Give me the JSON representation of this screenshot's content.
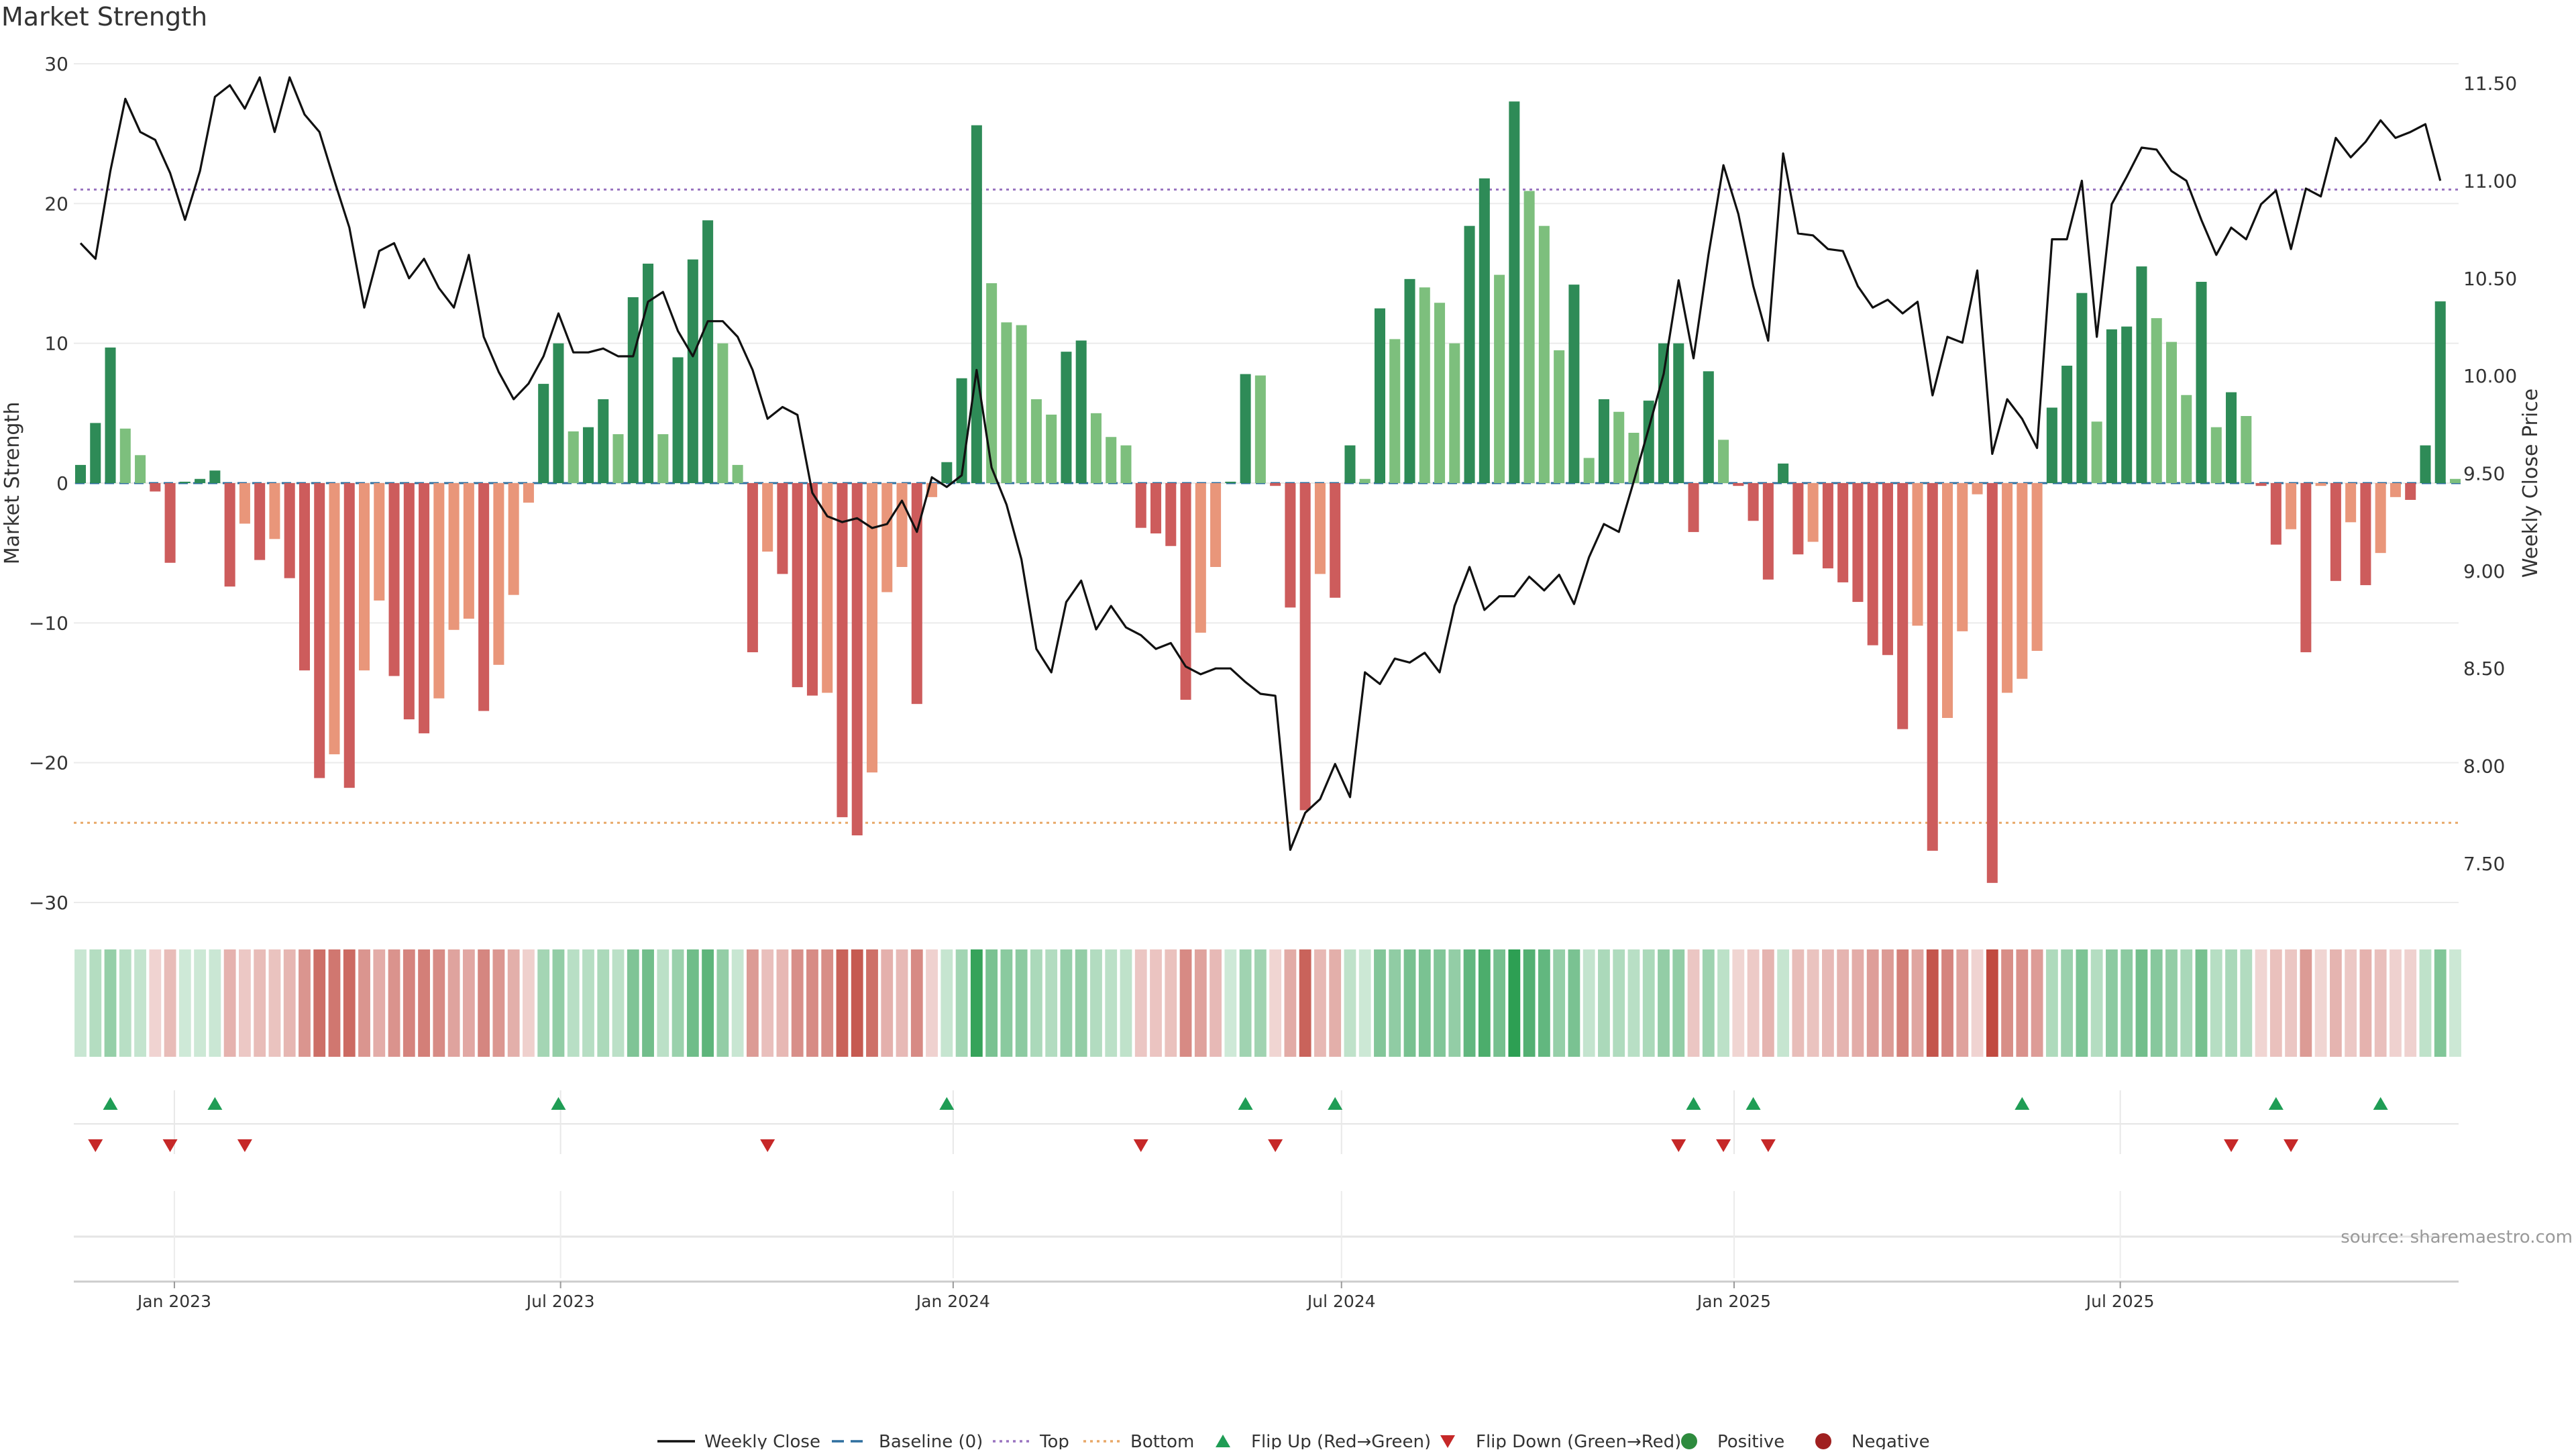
{
  "title": "Market Strength",
  "source": "source: sharemaestro.com",
  "axes": {
    "left_label": "Market Strength",
    "right_label": "Weekly Close Price",
    "left_ticks": [
      30,
      20,
      10,
      0,
      -10,
      -20,
      -30
    ],
    "left_tick_labels": [
      "30",
      "20",
      "10",
      "0",
      "−10",
      "−20",
      "−30"
    ],
    "right_ticks": [
      11.5,
      11.0,
      10.5,
      10.0,
      9.5,
      9.0,
      8.5,
      8.0,
      7.5
    ],
    "right_tick_labels": [
      "11.50",
      "11.00",
      "10.50",
      "10.00",
      "9.50",
      "9.00",
      "8.50",
      "8.00",
      "7.50"
    ],
    "x_ticks": [
      "Jan 2023",
      "Jul 2023",
      "Jan 2024",
      "Jul 2024",
      "Jan 2025",
      "Jul 2025"
    ]
  },
  "legend": [
    {
      "label": "Weekly Close",
      "kind": "line",
      "color": "#111111"
    },
    {
      "label": "Baseline (0)",
      "kind": "dash",
      "color": "#2f6f9f"
    },
    {
      "label": "Top",
      "kind": "dot",
      "color": "#9a74c0"
    },
    {
      "label": "Bottom",
      "kind": "dot",
      "color": "#e8a868"
    },
    {
      "label": "Flip Up (Red→Green)",
      "kind": "tri-up",
      "color": "#1f9d55"
    },
    {
      "label": "Flip Down (Green→Red)",
      "kind": "tri-down",
      "color": "#c62828"
    },
    {
      "label": "Positive",
      "kind": "circle",
      "color": "#2e8b3e"
    },
    {
      "label": "Negative",
      "kind": "circle",
      "color": "#a02020"
    }
  ],
  "colors": {
    "pos_strong": "#2e8b57",
    "pos_light": "#7dbf7d",
    "neg_strong": "#cd5c5c",
    "neg_light": "#e9967a",
    "price": "#111111",
    "top": "#9a74c0",
    "bottom": "#e8a868",
    "baseline": "#2f6f9f"
  },
  "chart_data": {
    "type": "bar",
    "title": "Market Strength",
    "x_start": "2022-11-18",
    "interval": "weekly",
    "ylim": [
      -30,
      30
    ],
    "y2lim": [
      7.3,
      11.6
    ],
    "top_level": 21,
    "bottom_level": -24.3,
    "baseline": 0,
    "series": [
      {
        "name": "Market Strength",
        "axis": "left",
        "values": [
          1.3,
          4.3,
          9.7,
          3.9,
          2.0,
          -0.6,
          -5.7,
          0.1,
          0.3,
          0.9,
          -7.4,
          -2.9,
          -5.5,
          -4.0,
          -6.8,
          -13.4,
          -21.1,
          -19.4,
          -21.8,
          -13.4,
          -8.4,
          -13.8,
          -16.9,
          -17.9,
          -15.4,
          -10.5,
          -9.7,
          -16.3,
          -13.0,
          -8.0,
          -1.4,
          7.1,
          10.0,
          3.7,
          4.0,
          6.0,
          3.5,
          13.3,
          15.7,
          3.5,
          9.0,
          16.0,
          18.8,
          10.0,
          1.3,
          -12.1,
          -4.9,
          -6.5,
          -14.6,
          -15.2,
          -15.0,
          -23.9,
          -25.2,
          -20.7,
          -7.8,
          -6.0,
          -15.8,
          -1.0,
          1.5,
          7.5,
          25.6,
          14.3,
          11.5,
          11.3,
          6.0,
          4.9,
          9.4,
          10.2,
          5.0,
          3.3,
          2.7,
          -3.2,
          -3.6,
          -4.5,
          -15.5,
          -10.7,
          -6.0,
          0.1,
          7.8,
          7.7,
          -0.2,
          -8.9,
          -23.4,
          -6.5,
          -8.2,
          2.7,
          0.3,
          12.5,
          10.3,
          14.6,
          14.0,
          12.9,
          10.0,
          18.4,
          21.8,
          14.9,
          27.3,
          20.9,
          18.4,
          9.5,
          14.2,
          1.8,
          6.0,
          5.1,
          3.6,
          5.9,
          10.0,
          10.0,
          -3.5,
          8.0,
          3.1,
          -0.2,
          -2.7,
          -6.9,
          1.4,
          -5.1,
          -4.2,
          -6.1,
          -7.1,
          -8.5,
          -11.6,
          -12.3,
          -17.6,
          -10.2,
          -26.3,
          -16.8,
          -10.6,
          -0.8,
          -28.6,
          -15.0,
          -14.0,
          -12.0,
          5.4,
          8.4,
          13.6,
          4.4,
          11.0,
          11.2,
          15.5,
          11.8,
          10.1,
          6.3,
          14.4,
          4.0,
          6.5,
          4.8,
          -0.2,
          -4.4,
          -3.3,
          -12.1,
          -0.2,
          -7.0,
          -2.8,
          -7.3,
          -5.0,
          -1.0,
          -1.2,
          2.7,
          13.0,
          0.3
        ]
      },
      {
        "name": "Weekly Close",
        "axis": "right",
        "values": [
          10.68,
          10.6,
          11.05,
          11.42,
          11.25,
          11.21,
          11.04,
          10.8,
          11.05,
          11.43,
          11.49,
          11.37,
          11.53,
          11.25,
          11.53,
          11.34,
          11.25,
          11.0,
          10.76,
          10.35,
          10.64,
          10.68,
          10.5,
          10.6,
          10.45,
          10.35,
          10.62,
          10.2,
          10.02,
          9.88,
          9.96,
          10.1,
          10.32,
          10.12,
          10.12,
          10.14,
          10.1,
          10.1,
          10.38,
          10.43,
          10.23,
          10.1,
          10.28,
          10.28,
          10.2,
          10.03,
          9.78,
          9.84,
          9.8,
          9.4,
          9.28,
          9.25,
          9.27,
          9.22,
          9.24,
          9.36,
          9.2,
          9.48,
          9.43,
          9.49,
          10.03,
          9.53,
          9.34,
          9.06,
          8.6,
          8.48,
          8.84,
          8.95,
          8.7,
          8.82,
          8.71,
          8.67,
          8.6,
          8.63,
          8.51,
          8.47,
          8.5,
          8.5,
          8.43,
          8.37,
          8.36,
          7.57,
          7.76,
          7.83,
          8.01,
          7.84,
          8.48,
          8.42,
          8.55,
          8.53,
          8.58,
          8.48,
          8.82,
          9.02,
          8.8,
          8.87,
          8.87,
          8.97,
          8.9,
          8.98,
          8.83,
          9.07,
          9.24,
          9.2,
          9.46,
          9.73,
          10.01,
          10.49,
          10.09,
          10.62,
          11.08,
          10.83,
          10.46,
          10.18,
          11.14,
          10.73,
          10.72,
          10.65,
          10.64,
          10.46,
          10.35,
          10.39,
          10.32,
          10.38,
          9.9,
          10.2,
          10.17,
          10.54,
          9.6,
          9.88,
          9.78,
          9.63,
          10.7,
          10.7,
          11.0,
          10.2,
          10.88,
          11.02,
          11.17,
          11.16,
          11.05,
          11.0,
          10.8,
          10.62,
          10.76,
          10.7,
          10.88,
          10.95,
          10.65,
          10.96,
          10.92,
          11.22,
          11.12,
          11.2,
          11.31,
          11.22,
          11.25,
          11.29,
          11.0
        ]
      }
    ],
    "flip_up_index": [
      2,
      9,
      32,
      58,
      78,
      84,
      108,
      112,
      130,
      147,
      154
    ],
    "flip_down_index": [
      1,
      6,
      11,
      46,
      71,
      80,
      107,
      110,
      113,
      144,
      148
    ],
    "x_tick_labels": [
      "Jan 2023",
      "Jul 2023",
      "Jan 2024",
      "Jul 2024",
      "Jan 2025",
      "Jul 2025"
    ],
    "x_tick_dates": [
      "2023-01-01",
      "2023-07-01",
      "2024-01-01",
      "2024-07-01",
      "2025-01-01",
      "2025-07-01"
    ]
  }
}
